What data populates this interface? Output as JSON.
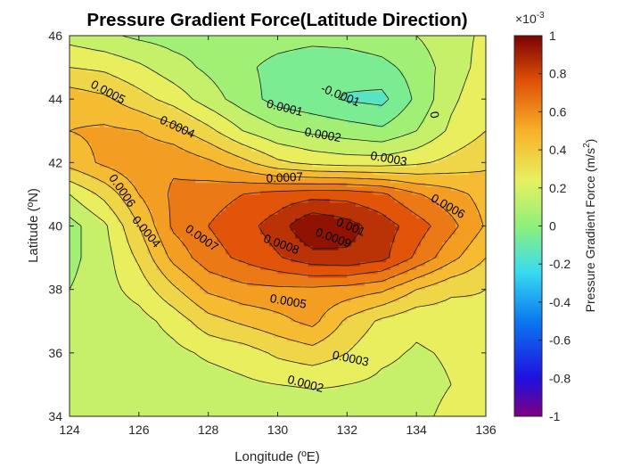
{
  "chart_data": {
    "type": "contour",
    "title": "Pressure Gradient Force(Latitude Direction)",
    "xlabel": "Longitude (ºE)",
    "ylabel": "Latitude (ºN)",
    "colorbar_label": "Pressure Gradient Force (m/s²)",
    "colorbar_label_prefix": "Pressure Gradient Force (m/s",
    "colorbar_label_sup": "2",
    "colorbar_label_suffix": ")",
    "colorbar_exponent_base": "×10",
    "colorbar_exponent": "-3",
    "colormap": "jet",
    "xlim": [
      124,
      136
    ],
    "ylim": [
      34,
      46
    ],
    "clim": [
      -0.001,
      0.001
    ],
    "x_ticks": [
      "124",
      "126",
      "128",
      "130",
      "132",
      "134",
      "136"
    ],
    "y_ticks": [
      "34",
      "36",
      "38",
      "40",
      "42",
      "44",
      "46"
    ],
    "colorbar_ticks": [
      "-1",
      "-0.8",
      "-0.6",
      "-0.4",
      "-0.2",
      "0",
      "0.2",
      "0.4",
      "0.6",
      "0.8",
      "1"
    ],
    "grid_lon": [
      124,
      125,
      126,
      127,
      128,
      129,
      130,
      131,
      132,
      133,
      134,
      135,
      136
    ],
    "grid_lat": [
      34,
      35,
      36,
      37,
      38,
      39,
      40,
      41,
      42,
      43,
      44,
      45,
      46
    ],
    "z": [
      [
        0.00012,
        0.00012,
        0.00011,
        0.0001,
        0.00012,
        0.00012,
        0.00012,
        0.00014,
        0.00016,
        0.00016,
        0.00018,
        0.00022,
        0.00025
      ],
      [
        0.00013,
        0.00012,
        0.00012,
        0.00014,
        0.00015,
        0.00018,
        0.0002,
        0.00021,
        0.0002,
        0.00018,
        0.00017,
        0.0002,
        0.00024
      ],
      [
        0.00014,
        0.00013,
        0.00013,
        0.00017,
        0.00022,
        0.00025,
        0.00032,
        0.00036,
        0.0003,
        0.00022,
        0.00019,
        0.00021,
        0.00025
      ],
      [
        0.00013,
        0.00014,
        0.00016,
        0.00024,
        0.00036,
        0.00042,
        0.00047,
        0.00053,
        0.00038,
        0.00028,
        0.00022,
        0.00024,
        0.00028
      ],
      [
        0.0001,
        0.00016,
        0.00024,
        0.00038,
        0.00052,
        0.00057,
        0.00058,
        0.00058,
        0.00056,
        0.00052,
        0.0004,
        0.00032,
        0.0003
      ],
      [
        7e-05,
        0.00016,
        0.00032,
        0.00053,
        0.00066,
        0.00072,
        0.00079,
        0.00086,
        0.00088,
        0.00083,
        0.00068,
        0.00053,
        0.0004
      ],
      [
        6e-05,
        0.00018,
        0.0004,
        0.00062,
        0.0007,
        0.00076,
        0.00085,
        0.001,
        0.00094,
        0.00085,
        0.00075,
        0.00063,
        0.00049
      ],
      [
        0.0002,
        0.00033,
        0.0005,
        0.00062,
        0.00066,
        0.0007,
        0.00074,
        0.00076,
        0.00076,
        0.00072,
        0.00061,
        0.00054,
        0.00046
      ],
      [
        0.00044,
        0.00052,
        0.00058,
        0.00058,
        0.00052,
        0.00043,
        0.00032,
        0.00027,
        0.00025,
        0.00025,
        0.00028,
        0.00033,
        0.00038
      ],
      [
        0.0005,
        0.00052,
        0.0005,
        0.00044,
        0.00033,
        0.0002,
        0.00012,
        8e-05,
        5e-05,
        2e-05,
        0.0001,
        0.00022,
        0.0003
      ],
      [
        0.00046,
        0.00042,
        0.00034,
        0.00026,
        0.00015,
        5e-05,
        -4e-05,
        -7e-05,
        -0.00011,
        -0.00013,
        2e-05,
        0.00018,
        0.00027
      ],
      [
        0.0003,
        0.00028,
        0.00022,
        0.00014,
        8e-05,
        2e-05,
        -3e-05,
        -6e-05,
        -6e-05,
        -3e-05,
        4e-05,
        0.00015,
        0.00024
      ],
      [
        0.00016,
        0.00012,
        8e-05,
        6e-05,
        6e-05,
        5e-05,
        4e-05,
        3e-05,
        4e-05,
        6e-05,
        0.0001,
        0.00016,
        0.00022
      ]
    ],
    "contour_levels": [
      -0.0001,
      0,
      0.0001,
      0.0002,
      0.0003,
      0.0004,
      0.0005,
      0.0006,
      0.0007,
      0.0008,
      0.0009,
      0.001
    ],
    "contour_labels": [
      {
        "text": "0.0005",
        "lon": 125.1,
        "lat": 44.2,
        "angle": 28
      },
      {
        "text": "0.0004",
        "lon": 127.1,
        "lat": 43.1,
        "angle": 25
      },
      {
        "text": "0.0006",
        "lon": 125.5,
        "lat": 41.1,
        "angle": 55
      },
      {
        "text": "0.0004",
        "lon": 126.2,
        "lat": 39.8,
        "angle": 50
      },
      {
        "text": "0.0007",
        "lon": 127.8,
        "lat": 39.6,
        "angle": 35
      },
      {
        "text": "0.0008",
        "lon": 130.1,
        "lat": 39.4,
        "angle": 20
      },
      {
        "text": "0.0009",
        "lon": 131.6,
        "lat": 39.6,
        "angle": 20
      },
      {
        "text": "0.001",
        "lon": 132.1,
        "lat": 39.95,
        "angle": 22
      },
      {
        "text": "0.0007",
        "lon": 130.2,
        "lat": 41.5,
        "angle": -3
      },
      {
        "text": "0.0006",
        "lon": 134.9,
        "lat": 40.6,
        "angle": 30
      },
      {
        "text": "0.0005",
        "lon": 130.3,
        "lat": 37.6,
        "angle": 10
      },
      {
        "text": "0.0003",
        "lon": 132.1,
        "lat": 35.8,
        "angle": 12
      },
      {
        "text": "0.0002",
        "lon": 130.8,
        "lat": 35.0,
        "angle": 15
      },
      {
        "text": "0.0001",
        "lon": 130.2,
        "lat": 43.7,
        "angle": 14
      },
      {
        "text": "0.0002",
        "lon": 131.3,
        "lat": 42.85,
        "angle": 10
      },
      {
        "text": "0.0003",
        "lon": 133.2,
        "lat": 42.1,
        "angle": 10
      },
      {
        "text": "-0.0001",
        "lon": 131.8,
        "lat": 44.1,
        "angle": 22
      },
      {
        "text": "0",
        "lon": 134.5,
        "lat": 43.5,
        "angle": 80
      }
    ]
  }
}
